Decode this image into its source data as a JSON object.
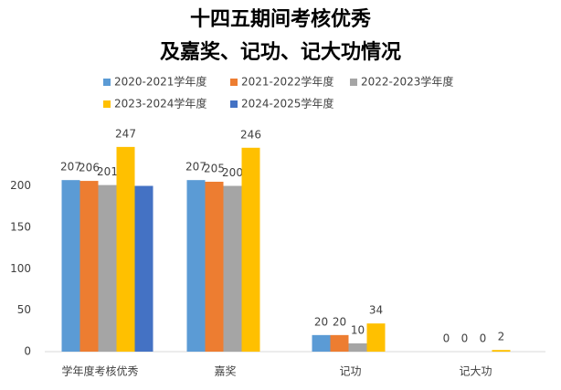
{
  "chart_data": {
    "type": "bar",
    "title_lines": [
      "十四五期间考核优秀",
      "及嘉奖、记功、记大功情况"
    ],
    "categories": [
      "学年度考核优秀",
      "嘉奖",
      "记功",
      "记大功"
    ],
    "series": [
      {
        "name": "2020-2021学年度",
        "color": "#5b9bd5",
        "values": [
          207,
          207,
          20,
          0
        ]
      },
      {
        "name": "2021-2022学年度",
        "color": "#ed7d31",
        "values": [
          206,
          205,
          20,
          0
        ]
      },
      {
        "name": "2022-2023学年度",
        "color": "#a5a5a5",
        "values": [
          201,
          200,
          10,
          0
        ]
      },
      {
        "name": "2023-2024学年度",
        "color": "#ffc000",
        "values": [
          247,
          246,
          34,
          2
        ]
      },
      {
        "name": "2024-2025学年度",
        "color": "#4472c4",
        "values": [
          200,
          null,
          null,
          null
        ],
        "show_labels": false
      }
    ],
    "ylim": [
      0,
      270
    ],
    "yticks": [
      0,
      50,
      100,
      150,
      200
    ],
    "grid": false,
    "legend": "top"
  }
}
